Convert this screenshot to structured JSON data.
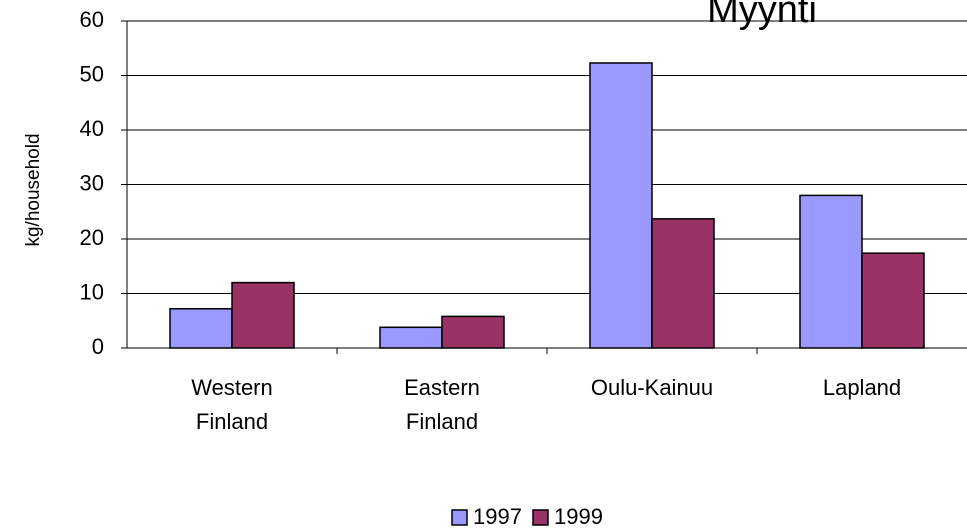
{
  "chart_data": {
    "type": "bar",
    "title": "Myynti",
    "y_label": "kg/household",
    "categories": [
      "Western Finland",
      "Eastern Finland",
      "Oulu-Kainuu",
      "Lapland"
    ],
    "series": [
      {
        "name": "1997",
        "color": "#9999ff",
        "values": [
          7.2,
          3.8,
          52.3,
          28
        ]
      },
      {
        "name": "1999",
        "color": "#993366",
        "values": [
          12,
          5.8,
          23.7,
          17.4
        ]
      }
    ],
    "ylim": [
      0,
      60
    ],
    "yticks": [
      0,
      10,
      20,
      30,
      40,
      50,
      60
    ],
    "grid": true,
    "legend": "bottom"
  }
}
